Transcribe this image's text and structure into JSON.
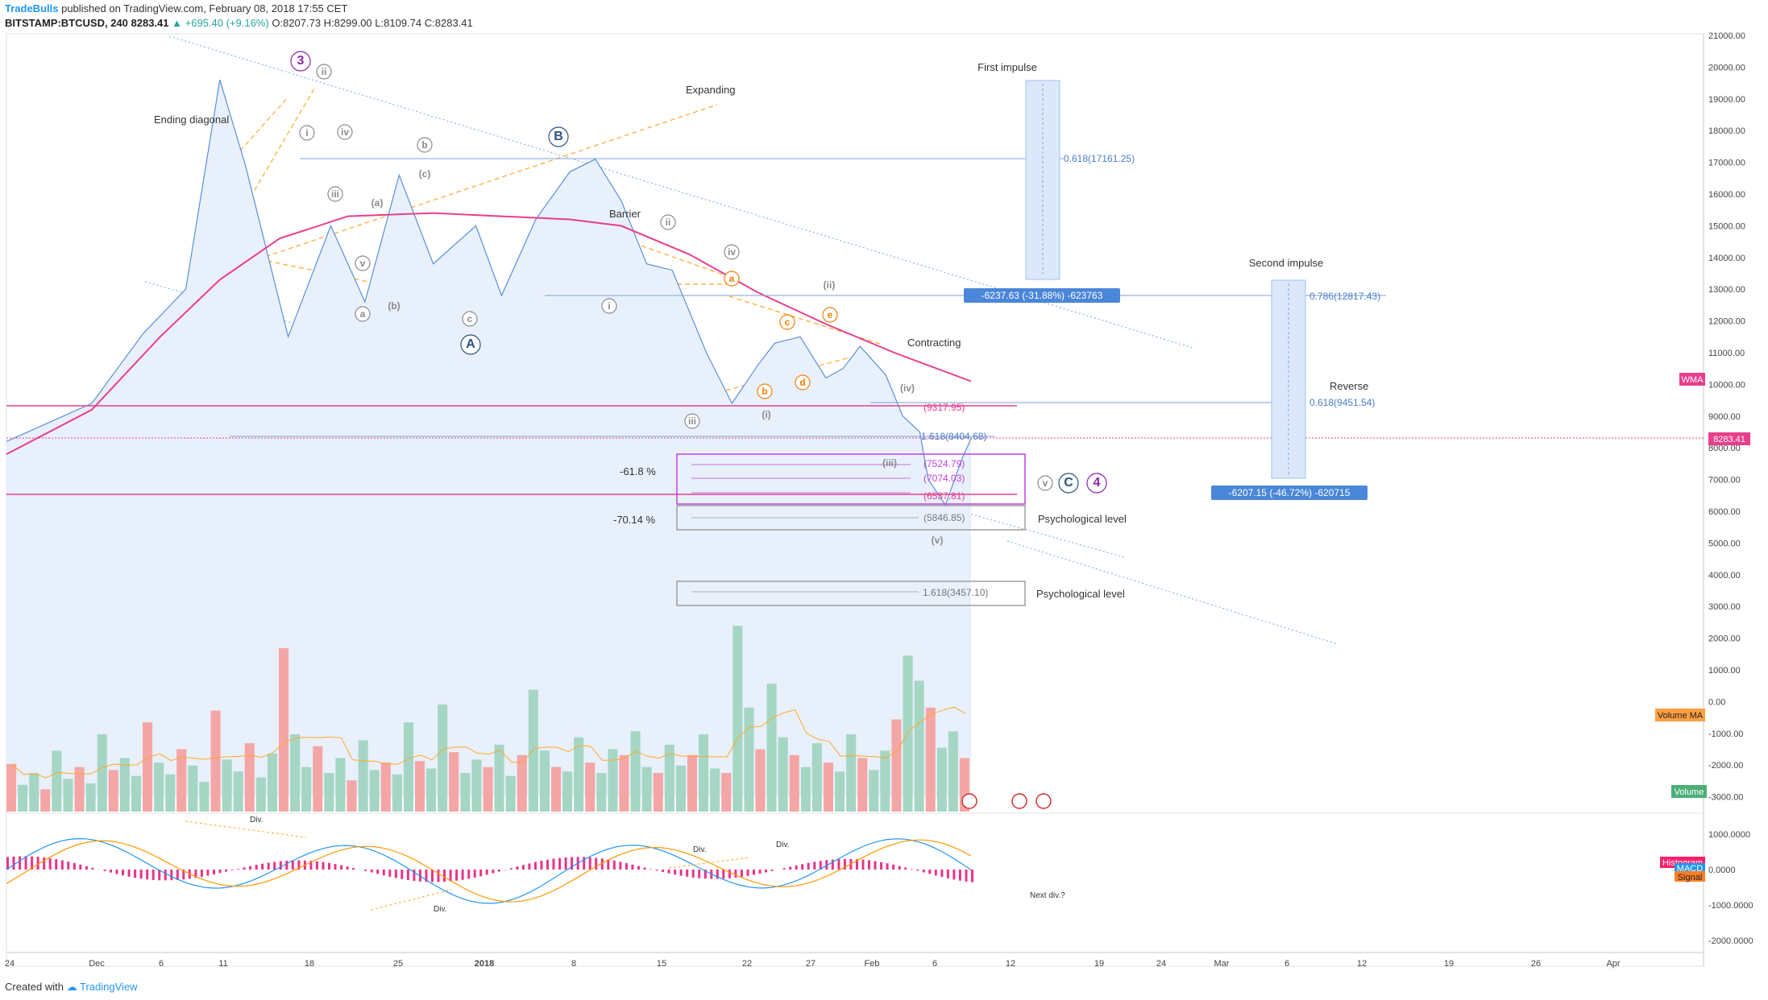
{
  "header": {
    "publisher": "TradeBulls",
    "published_text": "published on TradingView.com, February 08, 2018 17:55 CET",
    "symbol": "BITSTAMP:BTCUSD, 240",
    "last": "8283.41",
    "change": "▲ +695.40 (+9.16%)",
    "open": "O:8207.73",
    "high": "H:8299.00",
    "low": "L:8109.74",
    "close": "C:8283.41"
  },
  "footer": {
    "created_with": "Created with",
    "brand": "TradingView"
  },
  "colors": {
    "price_line": "#5b8fd9",
    "price_fill": "#e8f0fb",
    "wma": "#e83e8c",
    "orange": "#ffa726",
    "purple": "#c040e0",
    "gray": "#9e9e9e",
    "navy": "#2c5282",
    "vol_up": "#a5d6c4",
    "vol_down": "#f4a6a6"
  },
  "chart_data": {
    "type": "line",
    "title": "",
    "xlabel": "",
    "ylabel": "",
    "price_axis": {
      "labels": [
        "21000.00",
        "20000.00",
        "19000.00",
        "18000.00",
        "17000.00",
        "16000.00",
        "15000.00",
        "14000.00",
        "13000.00",
        "12000.00",
        "11000.00",
        "10000.00",
        "9000.00",
        "8000.00",
        "7000.00",
        "6000.00",
        "5000.00",
        "4000.00",
        "3000.00",
        "2000.00",
        "1000.00",
        "0.00",
        "-1000.00",
        "-2000.00",
        "-3000.00"
      ],
      "ylim": [
        -3000,
        21000
      ]
    },
    "macd_axis": {
      "labels": [
        "1000.0000",
        "0.0000",
        "-1000.0000",
        "-2000.0000"
      ]
    },
    "time_axis": {
      "labels": [
        "24",
        "Dec",
        "6",
        "11",
        "18",
        "25",
        "2018",
        "8",
        "15",
        "22",
        "27",
        "Feb",
        "6",
        "12",
        "19",
        "24",
        "Mar",
        "6",
        "12",
        "19",
        "26",
        "Apr"
      ]
    },
    "price_series": {
      "name": "BTCUSD",
      "points": [
        [
          0,
          8200
        ],
        [
          10,
          9400
        ],
        [
          16,
          11600
        ],
        [
          21,
          13000
        ],
        [
          25,
          19600
        ],
        [
          28,
          16900
        ],
        [
          33,
          11500
        ],
        [
          38,
          15000
        ],
        [
          42,
          12600
        ],
        [
          46,
          16600
        ],
        [
          50,
          13800
        ],
        [
          55,
          15000
        ],
        [
          58,
          12800
        ],
        [
          62,
          15200
        ],
        [
          66,
          16700
        ],
        [
          69,
          17100
        ],
        [
          72,
          15800
        ],
        [
          75,
          13800
        ],
        [
          78,
          13600
        ],
        [
          82,
          11000
        ],
        [
          85,
          9400
        ],
        [
          88,
          10600
        ],
        [
          90,
          11300
        ],
        [
          93,
          11500
        ],
        [
          96,
          10200
        ],
        [
          98,
          10500
        ],
        [
          100,
          11200
        ],
        [
          103,
          10300
        ],
        [
          105,
          9000
        ],
        [
          107,
          8500
        ],
        [
          108,
          7000
        ],
        [
          110,
          6200
        ],
        [
          112,
          7700
        ],
        [
          113,
          8283
        ]
      ]
    },
    "wma_series": {
      "name": "WMA",
      "points": [
        [
          0,
          7800
        ],
        [
          10,
          9200
        ],
        [
          18,
          11500
        ],
        [
          25,
          13300
        ],
        [
          32,
          14600
        ],
        [
          40,
          15300
        ],
        [
          50,
          15400
        ],
        [
          58,
          15300
        ],
        [
          66,
          15200
        ],
        [
          72,
          15000
        ],
        [
          80,
          14100
        ],
        [
          88,
          12900
        ],
        [
          96,
          11900
        ],
        [
          104,
          11000
        ],
        [
          113,
          10100
        ]
      ]
    },
    "horizontal_levels": [
      {
        "price": 9317.95,
        "label": "(9317.95)"
      },
      {
        "price": 8404.68,
        "label": "1.618(8404.68)"
      },
      {
        "price": 7524.79,
        "label": "(7524.79)"
      },
      {
        "price": 7074.03,
        "label": "(7074.03)"
      },
      {
        "price": 6537.81,
        "label": "(6537.81)"
      },
      {
        "price": 5846.85,
        "label": "(5846.85)"
      },
      {
        "price": 3457.1,
        "label": "1.618(3457.10)"
      }
    ],
    "fib_levels": [
      {
        "label": "0.618(17161.25)"
      },
      {
        "label": "0.786(12817.43)"
      },
      {
        "label": "0.618(9451.54)"
      }
    ],
    "measures": [
      {
        "name": "First impulse",
        "label": "-6237.63 (-31.88%) -623763"
      },
      {
        "name": "Second impulse",
        "label": "-6207.15 (-46.72%) -620715"
      }
    ],
    "annotations": {
      "text": [
        "Ending diagonal",
        "Expanding",
        "Barrier",
        "Contracting",
        "Reverse",
        "Psychological level",
        "Psychological level",
        "-61.8 %",
        "-70.14 %",
        "Div.",
        "Div.",
        "Div.",
        "Div.",
        "Next div.?"
      ],
      "waves": [
        "3",
        "ii",
        "i",
        "iv",
        "iii",
        "v",
        "a",
        "(a)",
        "(b)",
        "b",
        "(c)",
        "c",
        "A",
        "B",
        "C",
        "4",
        "i",
        "ii",
        "iii",
        "iv",
        "(i)",
        "(ii)",
        "(iii)",
        "(iv)",
        "(v)",
        "a",
        "b",
        "c",
        "d",
        "e",
        "v"
      ]
    },
    "badges": {
      "wma": "WMA",
      "price": "8283.41",
      "volume_ma": "Volume MA",
      "volume": "Volume",
      "histogram": "Histogram",
      "macd": "MACD",
      "signal": "Signal"
    },
    "volume_series": {
      "name": "Volume",
      "values": [
        320,
        180,
        260,
        150,
        410,
        220,
        300,
        190,
        520,
        280,
        360,
        240,
        600,
        330,
        250,
        420,
        310,
        200,
        680,
        350,
        270,
        460,
        230,
        390,
        1100,
        520,
        300,
        440,
        260,
        360,
        210,
        480,
        280,
        330,
        250,
        600,
        340,
        290,
        720,
        400,
        260,
        350,
        300,
        450,
        240,
        380,
        820,
        410,
        300,
        270,
        500,
        330,
        260,
        420,
        380,
        540,
        300,
        260,
        450,
        310,
        380,
        520,
        290,
        260,
        1250,
        700,
        420,
        860,
        500,
        380,
        300,
        460,
        330,
        270,
        520,
        360,
        280,
        410,
        620,
        1050,
        880,
        700,
        430,
        540,
        360
      ]
    }
  }
}
